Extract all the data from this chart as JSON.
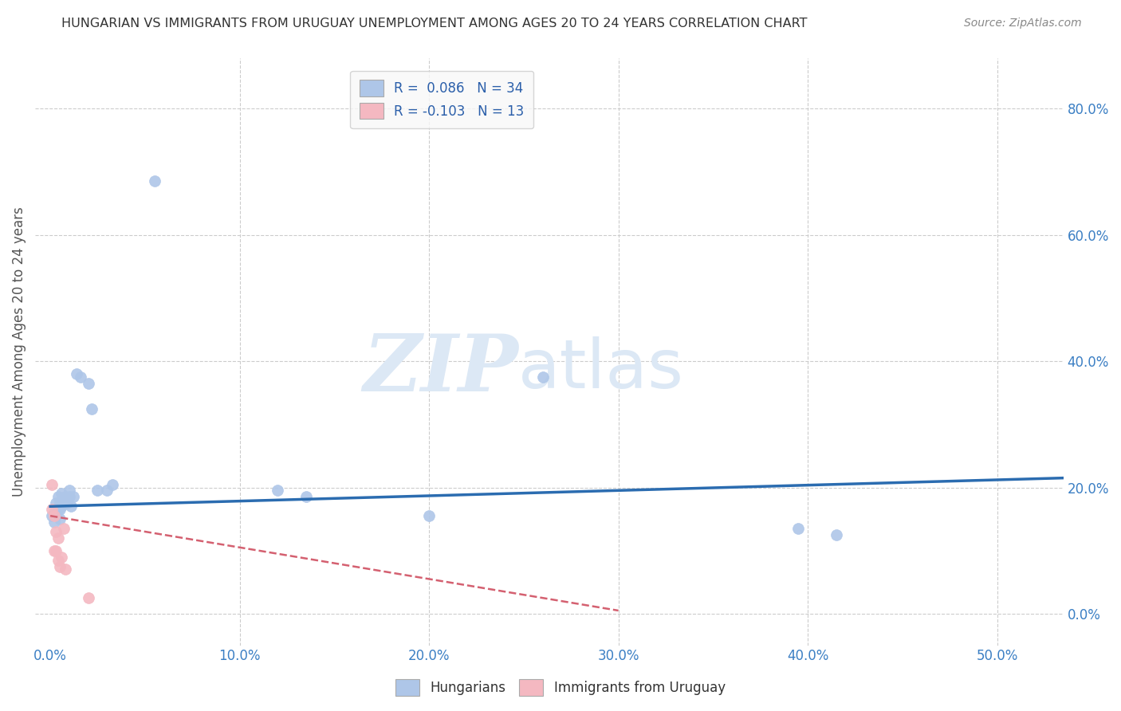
{
  "title": "HUNGARIAN VS IMMIGRANTS FROM URUGUAY UNEMPLOYMENT AMONG AGES 20 TO 24 YEARS CORRELATION CHART",
  "source": "Source: ZipAtlas.com",
  "xlabel_ticks": [
    "0.0%",
    "10.0%",
    "20.0%",
    "30.0%",
    "40.0%",
    "50.0%"
  ],
  "xlabel_vals": [
    0.0,
    0.1,
    0.2,
    0.3,
    0.4,
    0.5
  ],
  "ylabel_ticks": [
    "0.0%",
    "20.0%",
    "40.0%",
    "60.0%",
    "80.0%"
  ],
  "ylabel_vals": [
    0.0,
    0.2,
    0.4,
    0.6,
    0.8
  ],
  "ylabel_label": "Unemployment Among Ages 20 to 24 years",
  "xlim": [
    -0.008,
    0.535
  ],
  "ylim": [
    -0.05,
    0.88
  ],
  "legend_entries": [
    {
      "label": "R =  0.086   N = 34",
      "color": "#aec6e8"
    },
    {
      "label": "R = -0.103   N = 13",
      "color": "#f4b8c1"
    }
  ],
  "hungarians_x": [
    0.001,
    0.002,
    0.002,
    0.003,
    0.003,
    0.004,
    0.004,
    0.005,
    0.005,
    0.005,
    0.006,
    0.006,
    0.007,
    0.008,
    0.008,
    0.009,
    0.01,
    0.01,
    0.011,
    0.012,
    0.014,
    0.016,
    0.02,
    0.022,
    0.025,
    0.03,
    0.033,
    0.055,
    0.12,
    0.135,
    0.2,
    0.26,
    0.395,
    0.415
  ],
  "hungarians_y": [
    0.155,
    0.16,
    0.145,
    0.175,
    0.155,
    0.165,
    0.185,
    0.165,
    0.175,
    0.15,
    0.19,
    0.17,
    0.175,
    0.175,
    0.185,
    0.175,
    0.185,
    0.195,
    0.17,
    0.185,
    0.38,
    0.375,
    0.365,
    0.325,
    0.195,
    0.195,
    0.205,
    0.685,
    0.195,
    0.185,
    0.155,
    0.375,
    0.135,
    0.125
  ],
  "uruguay_x": [
    0.001,
    0.001,
    0.002,
    0.002,
    0.003,
    0.003,
    0.004,
    0.004,
    0.005,
    0.006,
    0.007,
    0.008,
    0.02
  ],
  "uruguay_y": [
    0.205,
    0.165,
    0.155,
    0.1,
    0.13,
    0.1,
    0.12,
    0.085,
    0.075,
    0.09,
    0.135,
    0.07,
    0.025
  ],
  "hun_color": "#aec6e8",
  "hun_edge": "#8ab0d8",
  "hun_line_color": "#2b6cb0",
  "hun_trend_x": [
    0.0,
    0.535
  ],
  "hun_trend_y": [
    0.17,
    0.215
  ],
  "uru_color": "#f4b8c1",
  "uru_edge": "#e898a8",
  "uru_line_color": "#d46070",
  "uru_trend_x": [
    0.0,
    0.3
  ],
  "uru_trend_y": [
    0.155,
    0.005
  ],
  "background_color": "#ffffff",
  "grid_color": "#cccccc",
  "title_color": "#333333",
  "axis_label_color": "#3b7fc4",
  "marker_size": 100
}
